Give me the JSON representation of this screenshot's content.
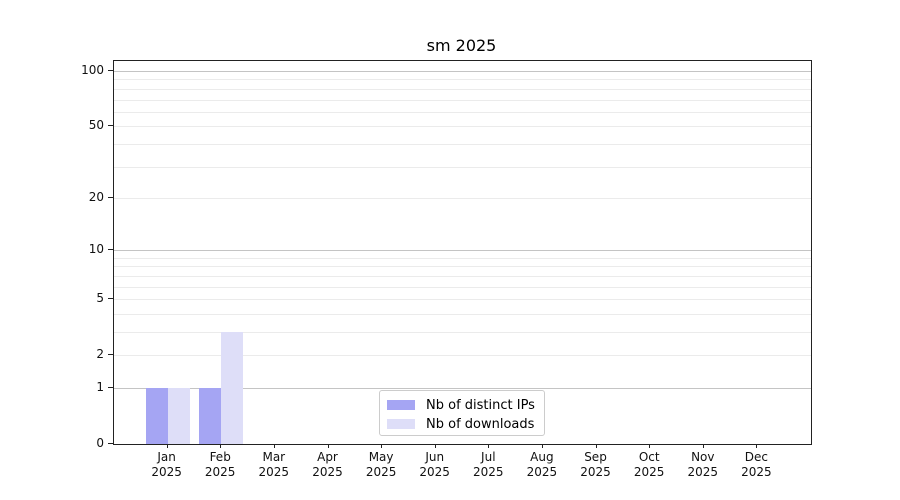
{
  "chart_data": {
    "type": "bar",
    "title": "sm 2025",
    "year": "2025",
    "categories": [
      {
        "month": "Jan",
        "year": "2025"
      },
      {
        "month": "Feb",
        "year": "2025"
      },
      {
        "month": "Mar",
        "year": "2025"
      },
      {
        "month": "Apr",
        "year": "2025"
      },
      {
        "month": "May",
        "year": "2025"
      },
      {
        "month": "Jun",
        "year": "2025"
      },
      {
        "month": "Jul",
        "year": "2025"
      },
      {
        "month": "Aug",
        "year": "2025"
      },
      {
        "month": "Sep",
        "year": "2025"
      },
      {
        "month": "Oct",
        "year": "2025"
      },
      {
        "month": "Nov",
        "year": "2025"
      },
      {
        "month": "Dec",
        "year": "2025"
      }
    ],
    "series": [
      {
        "key": "distinct-ips",
        "name": "Nb of distinct IPs",
        "color": "#a5a5f3",
        "values": [
          1,
          1,
          0,
          0,
          0,
          0,
          0,
          0,
          0,
          0,
          0,
          0
        ]
      },
      {
        "key": "downloads",
        "name": "Nb of downloads",
        "color": "#dedef8",
        "values": [
          1,
          3,
          0,
          0,
          0,
          0,
          0,
          0,
          0,
          0,
          0,
          0
        ]
      }
    ],
    "y_axis": {
      "scale": "log1p",
      "max": 100,
      "tick_values": [
        0,
        1,
        2,
        5,
        10,
        20,
        50,
        100
      ],
      "tick_labels": [
        "0",
        "1",
        "2",
        "5",
        "10",
        "20",
        "50",
        "100"
      ],
      "major_gridlines": [
        1,
        10,
        100
      ],
      "minor_gridlines": [
        2,
        3,
        4,
        5,
        6,
        7,
        8,
        9,
        20,
        30,
        40,
        50,
        60,
        70,
        80,
        90
      ]
    },
    "legend": {
      "position": "inside-bottom-center"
    },
    "colors": {
      "major_grid": "#c4c4c4",
      "minor_grid": "#ebebeb",
      "spine": "#222222",
      "text": "#111111"
    }
  }
}
